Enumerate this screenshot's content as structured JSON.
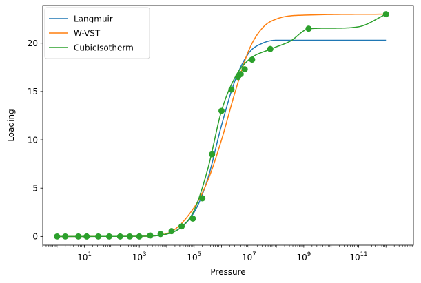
{
  "chart_data": {
    "type": "line",
    "title": "",
    "xlabel": "Pressure",
    "ylabel": "Loading",
    "xscale": "log",
    "xlim": [
      0.3,
      10000000000000.0
    ],
    "ylim": [
      -0.9,
      23.9
    ],
    "grid": false,
    "legend_position": "top-left",
    "x_ticks": [
      {
        "value": 10,
        "label": "10",
        "exp": "1"
      },
      {
        "value": 1000,
        "label": "10",
        "exp": "3"
      },
      {
        "value": 100000,
        "label": "10",
        "exp": "5"
      },
      {
        "value": 10000000,
        "label": "10",
        "exp": "7"
      },
      {
        "value": 1000000000,
        "label": "10",
        "exp": "9"
      },
      {
        "value": 100000000000,
        "label": "10",
        "exp": "11"
      }
    ],
    "y_ticks": [
      {
        "value": 0,
        "label": "0"
      },
      {
        "value": 5,
        "label": "5"
      },
      {
        "value": 10,
        "label": "10"
      },
      {
        "value": 15,
        "label": "15"
      },
      {
        "value": 20,
        "label": "20"
      }
    ],
    "series": [
      {
        "name": "Langmuir",
        "color": "#1f77b4",
        "style": "line",
        "points": [
          [
            1,
            0
          ],
          [
            1000,
            0.02
          ],
          [
            10000,
            0.25
          ],
          [
            100000,
            2.5
          ],
          [
            316228,
            6.0
          ],
          [
            1000000,
            11.5
          ],
          [
            3162278,
            16.2
          ],
          [
            10000000,
            19.0
          ],
          [
            31622777,
            20.0
          ],
          [
            100000000,
            20.3
          ],
          [
            1000000000000,
            20.3
          ]
        ]
      },
      {
        "name": "W-VST",
        "color": "#ff7f0e",
        "style": "line",
        "points": [
          [
            1,
            0
          ],
          [
            1000,
            0.02
          ],
          [
            10000,
            0.3
          ],
          [
            100000,
            3.0
          ],
          [
            316228,
            5.8
          ],
          [
            1000000,
            10.0
          ],
          [
            3162278,
            15.0
          ],
          [
            10000000,
            19.3
          ],
          [
            31622777,
            21.6
          ],
          [
            100000000,
            22.5
          ],
          [
            1000000000,
            22.9
          ],
          [
            1000000000000,
            23.0
          ]
        ]
      },
      {
        "name": "CubicIsotherm",
        "color": "#2ca02c",
        "style": "line",
        "points": [
          [
            1,
            0
          ],
          [
            1000,
            0.02
          ],
          [
            10000,
            0.25
          ],
          [
            31622,
            0.9
          ],
          [
            100000,
            2.7
          ],
          [
            316228,
            7.0
          ],
          [
            1000000,
            13.0
          ],
          [
            3162278,
            16.5
          ],
          [
            10000000,
            18.3
          ],
          [
            63095734,
            19.4
          ],
          [
            316227766,
            20.2
          ],
          [
            1584893192,
            21.5
          ],
          [
            10000000000,
            21.55
          ],
          [
            100000000000,
            21.7
          ],
          [
            1000000000000,
            23.0
          ]
        ]
      },
      {
        "name": "",
        "color": "#2ca02c",
        "style": "markers",
        "points": [
          [
            1,
            0
          ],
          [
            2,
            0
          ],
          [
            6,
            0
          ],
          [
            12,
            0
          ],
          [
            32,
            0
          ],
          [
            80,
            0
          ],
          [
            200,
            0
          ],
          [
            450,
            0
          ],
          [
            1000,
            0
          ],
          [
            2500,
            0.1
          ],
          [
            6000,
            0.25
          ],
          [
            15000,
            0.55
          ],
          [
            35000,
            1.05
          ],
          [
            90000,
            1.85
          ],
          [
            200000,
            3.95
          ],
          [
            450000,
            8.5
          ],
          [
            1000000,
            13.0
          ],
          [
            2300000,
            15.2
          ],
          [
            4000000,
            16.5
          ],
          [
            5000000,
            16.8
          ],
          [
            7000000,
            17.3
          ],
          [
            13000000,
            18.3
          ],
          [
            60000000,
            19.4
          ],
          [
            1500000000,
            21.5
          ],
          [
            1000000000000,
            23.0
          ]
        ]
      }
    ]
  }
}
